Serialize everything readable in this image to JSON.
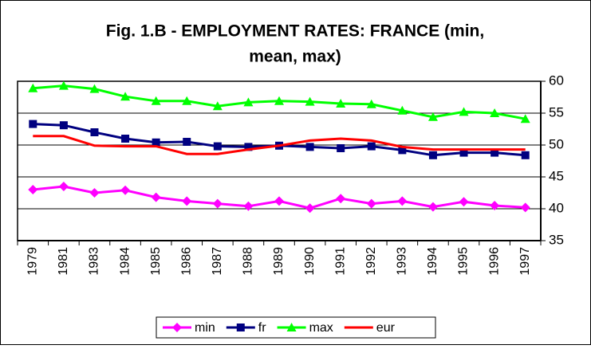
{
  "chart_data": {
    "type": "line",
    "title": "Fig. 1.B - EMPLOYMENT RATES: FRANCE (min, mean, max)",
    "categories": [
      "1979",
      "1981",
      "1983",
      "1984",
      "1985",
      "1986",
      "1987",
      "1988",
      "1989",
      "1990",
      "1991",
      "1992",
      "1993",
      "1994",
      "1995",
      "1996",
      "1997"
    ],
    "series": [
      {
        "name": "min",
        "color": "#ff00ff",
        "marker": "diamond",
        "values": [
          43.0,
          43.5,
          42.5,
          42.9,
          41.8,
          41.2,
          40.8,
          40.4,
          41.2,
          40.1,
          41.6,
          40.8,
          41.2,
          40.3,
          41.1,
          40.5,
          40.2
        ]
      },
      {
        "name": "fr",
        "color": "#000080",
        "marker": "square",
        "values": [
          53.3,
          53.1,
          52.0,
          51.0,
          50.4,
          50.5,
          49.8,
          49.7,
          49.9,
          49.7,
          49.5,
          49.8,
          49.2,
          48.4,
          48.8,
          48.8,
          48.4
        ]
      },
      {
        "name": "max",
        "color": "#00ff00",
        "marker": "triangle",
        "values": [
          58.9,
          59.3,
          58.8,
          57.6,
          56.9,
          56.9,
          56.1,
          56.7,
          56.9,
          56.8,
          56.5,
          56.4,
          55.4,
          54.4,
          55.2,
          55.0,
          54.1
        ]
      },
      {
        "name": "eur",
        "color": "#ff0000",
        "marker": "none",
        "values": [
          51.4,
          51.4,
          49.9,
          49.8,
          49.8,
          48.6,
          48.6,
          49.3,
          49.9,
          50.7,
          51.0,
          50.7,
          49.7,
          49.3,
          49.3,
          49.3,
          49.3
        ]
      }
    ],
    "ylim": [
      35,
      60
    ],
    "yticks": [
      35,
      40,
      45,
      50,
      55,
      60
    ],
    "grid": true,
    "legend": "bottom"
  }
}
